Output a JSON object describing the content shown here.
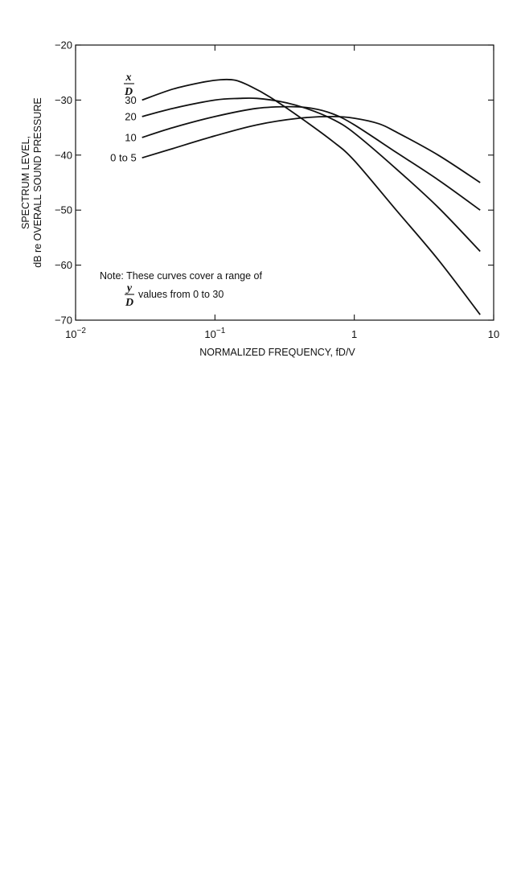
{
  "chart_data": {
    "type": "line",
    "xscale": "log",
    "xlim": [
      0.01,
      10
    ],
    "ylim": [
      -70,
      -20
    ],
    "xlabel": "NORMALIZED FREQUENCY,  fD/V",
    "ylabel_line1": "SPECTRUM LEVEL,",
    "ylabel_line2": "dB re OVERALL SOUND PRESSURE",
    "x_ticks": [
      {
        "value": 0.01,
        "base": "10",
        "exp": "−2"
      },
      {
        "value": 0.1,
        "base": "10",
        "exp": "−1"
      },
      {
        "value": 1,
        "base": "1",
        "exp": ""
      },
      {
        "value": 10,
        "base": "10",
        "exp": ""
      }
    ],
    "y_ticks": [
      -20,
      -30,
      -40,
      -50,
      -60,
      -70
    ],
    "y_tick_labels": [
      "−20",
      "−30",
      "−40",
      "−50",
      "−60",
      "−70"
    ],
    "legend_header": {
      "numerator": "x",
      "denominator": "D"
    },
    "series": [
      {
        "name": "30",
        "x": [
          0.03,
          0.05,
          0.08,
          0.11,
          0.14,
          0.18,
          0.25,
          0.4,
          0.7,
          1.0,
          2.0,
          4.0,
          8.0
        ],
        "y": [
          -30.0,
          -28.0,
          -26.8,
          -26.3,
          -26.4,
          -27.5,
          -29.5,
          -33.0,
          -37.5,
          -41.0,
          -50.0,
          -59.0,
          -69.0
        ]
      },
      {
        "name": "20",
        "x": [
          0.03,
          0.05,
          0.1,
          0.15,
          0.2,
          0.3,
          0.45,
          0.7,
          1.0,
          2.0,
          4.0,
          8.0
        ],
        "y": [
          -33.0,
          -31.5,
          -30.0,
          -29.7,
          -29.7,
          -30.3,
          -31.5,
          -33.5,
          -36.0,
          -42.5,
          -49.5,
          -57.5
        ]
      },
      {
        "name": "10",
        "x": [
          0.03,
          0.05,
          0.1,
          0.2,
          0.35,
          0.5,
          0.7,
          1.0,
          2.0,
          4.0,
          8.0
        ],
        "y": [
          -36.8,
          -35.0,
          -33.0,
          -31.5,
          -31.2,
          -31.5,
          -32.5,
          -34.5,
          -39.5,
          -44.5,
          -50.0
        ]
      },
      {
        "name": "0 to 5",
        "x": [
          0.03,
          0.05,
          0.1,
          0.2,
          0.4,
          0.7,
          1.0,
          1.5,
          2.0,
          4.0,
          8.0
        ],
        "y": [
          -40.5,
          -38.8,
          -36.5,
          -34.5,
          -33.3,
          -33.0,
          -33.3,
          -34.3,
          -35.8,
          -40.0,
          -45.0
        ]
      }
    ],
    "note": {
      "line1": "Note:  These curves cover a range of",
      "frac_numerator": "y",
      "frac_denominator": "D",
      "line2": "values from 0 to 30"
    },
    "grid": false
  }
}
